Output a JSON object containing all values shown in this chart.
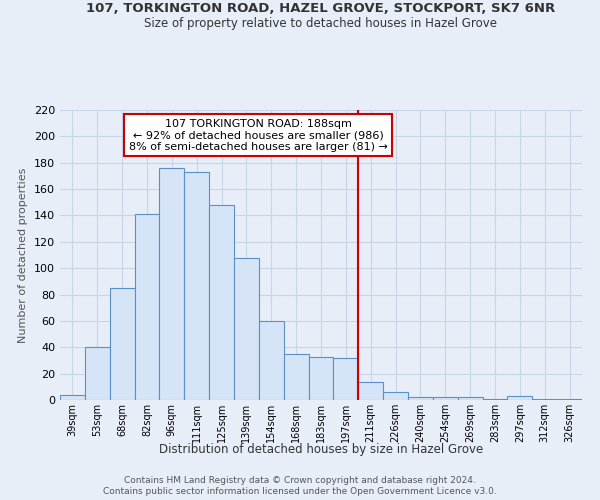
{
  "title1": "107, TORKINGTON ROAD, HAZEL GROVE, STOCKPORT, SK7 6NR",
  "title2": "Size of property relative to detached houses in Hazel Grove",
  "xlabel": "Distribution of detached houses by size in Hazel Grove",
  "ylabel": "Number of detached properties",
  "footer1": "Contains HM Land Registry data © Crown copyright and database right 2024.",
  "footer2": "Contains public sector information licensed under the Open Government Licence v3.0.",
  "categories": [
    "39sqm",
    "53sqm",
    "68sqm",
    "82sqm",
    "96sqm",
    "111sqm",
    "125sqm",
    "139sqm",
    "154sqm",
    "168sqm",
    "183sqm",
    "197sqm",
    "211sqm",
    "226sqm",
    "240sqm",
    "254sqm",
    "269sqm",
    "283sqm",
    "297sqm",
    "312sqm",
    "326sqm"
  ],
  "values": [
    4,
    40,
    85,
    141,
    176,
    173,
    148,
    108,
    60,
    35,
    33,
    32,
    14,
    6,
    2,
    2,
    2,
    1,
    3,
    1,
    1
  ],
  "bar_fill": "#d6e4f7",
  "bar_edge": "#5b8fc9",
  "vline_color": "#cc0000",
  "vline_x": 11,
  "annotation_title": "107 TORKINGTON ROAD: 188sqm",
  "annotation_line1": "← 92% of detached houses are smaller (986)",
  "annotation_line2": "8% of semi-detached houses are larger (81) →",
  "annotation_box_color": "#ffffff",
  "annotation_box_edge": "#cc0000",
  "ylim": [
    0,
    220
  ],
  "yticks": [
    0,
    20,
    40,
    60,
    80,
    100,
    120,
    140,
    160,
    180,
    200,
    220
  ],
  "background_color": "#e8eef8",
  "grid_color": "#c8d4e8",
  "title_color": "#333333",
  "axis_color": "#555555"
}
